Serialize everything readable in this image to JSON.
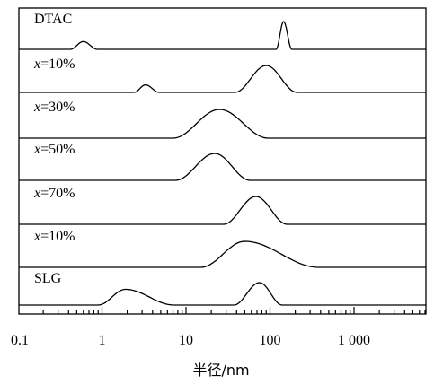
{
  "chart_data": {
    "type": "line",
    "title": "",
    "xlabel": "半径/nm",
    "ylabel": "",
    "x_scale": "log",
    "xlim": [
      0.1,
      7000
    ],
    "grid": false,
    "legend": "none",
    "x_tick_labels": [
      {
        "value": 0.1,
        "label": "0.1"
      },
      {
        "value": 1,
        "label": "1"
      },
      {
        "value": 10,
        "label": "10"
      },
      {
        "value": 100,
        "label": "100"
      },
      {
        "value": 1000,
        "label": "1 000"
      }
    ],
    "series": [
      {
        "name": "DTAC",
        "label_parts": [
          {
            "text": "DTAC",
            "italic": false
          }
        ],
        "peaks": [
          {
            "from": 0.42,
            "to": 0.88,
            "center": 0.6,
            "height": 0.28
          },
          {
            "from": 118,
            "to": 182,
            "center": 145,
            "height": 1.0
          }
        ]
      },
      {
        "name": "x=10%",
        "label_parts": [
          {
            "text": "x",
            "italic": true
          },
          {
            "text": "=10%",
            "italic": false
          }
        ],
        "peaks": [
          {
            "from": 2.4,
            "to": 4.8,
            "center": 3.3,
            "height": 0.28
          },
          {
            "from": 38,
            "to": 210,
            "center": 90,
            "height": 1.0
          }
        ]
      },
      {
        "name": "x=30%",
        "label_parts": [
          {
            "text": "x",
            "italic": true
          },
          {
            "text": "=30%",
            "italic": false
          }
        ],
        "peaks": [
          {
            "from": 7,
            "to": 95,
            "center": 25,
            "height": 1.0
          }
        ]
      },
      {
        "name": "x=50%",
        "label_parts": [
          {
            "text": "x",
            "italic": true
          },
          {
            "text": "=50%",
            "italic": false
          }
        ],
        "peaks": [
          {
            "from": 7.5,
            "to": 58,
            "center": 22,
            "height": 1.0
          }
        ]
      },
      {
        "name": "x=70%",
        "label_parts": [
          {
            "text": "x",
            "italic": true
          },
          {
            "text": "=70%",
            "italic": false
          }
        ],
        "peaks": [
          {
            "from": 28,
            "to": 160,
            "center": 68,
            "height": 1.0
          }
        ]
      },
      {
        "name": "x=10%",
        "label_parts": [
          {
            "text": "x",
            "italic": true
          },
          {
            "text": "=10%",
            "italic": false
          }
        ],
        "peaks": [
          {
            "from": 15,
            "to": 380,
            "center": 50,
            "height": 1.0
          }
        ]
      },
      {
        "name": "SLG",
        "label_parts": [
          {
            "text": "SLG",
            "italic": false
          }
        ],
        "peaks": [
          {
            "from": 0.9,
            "to": 7.2,
            "center": 1.9,
            "height": 0.7
          },
          {
            "from": 37,
            "to": 140,
            "center": 75,
            "height": 1.0
          }
        ]
      }
    ]
  }
}
